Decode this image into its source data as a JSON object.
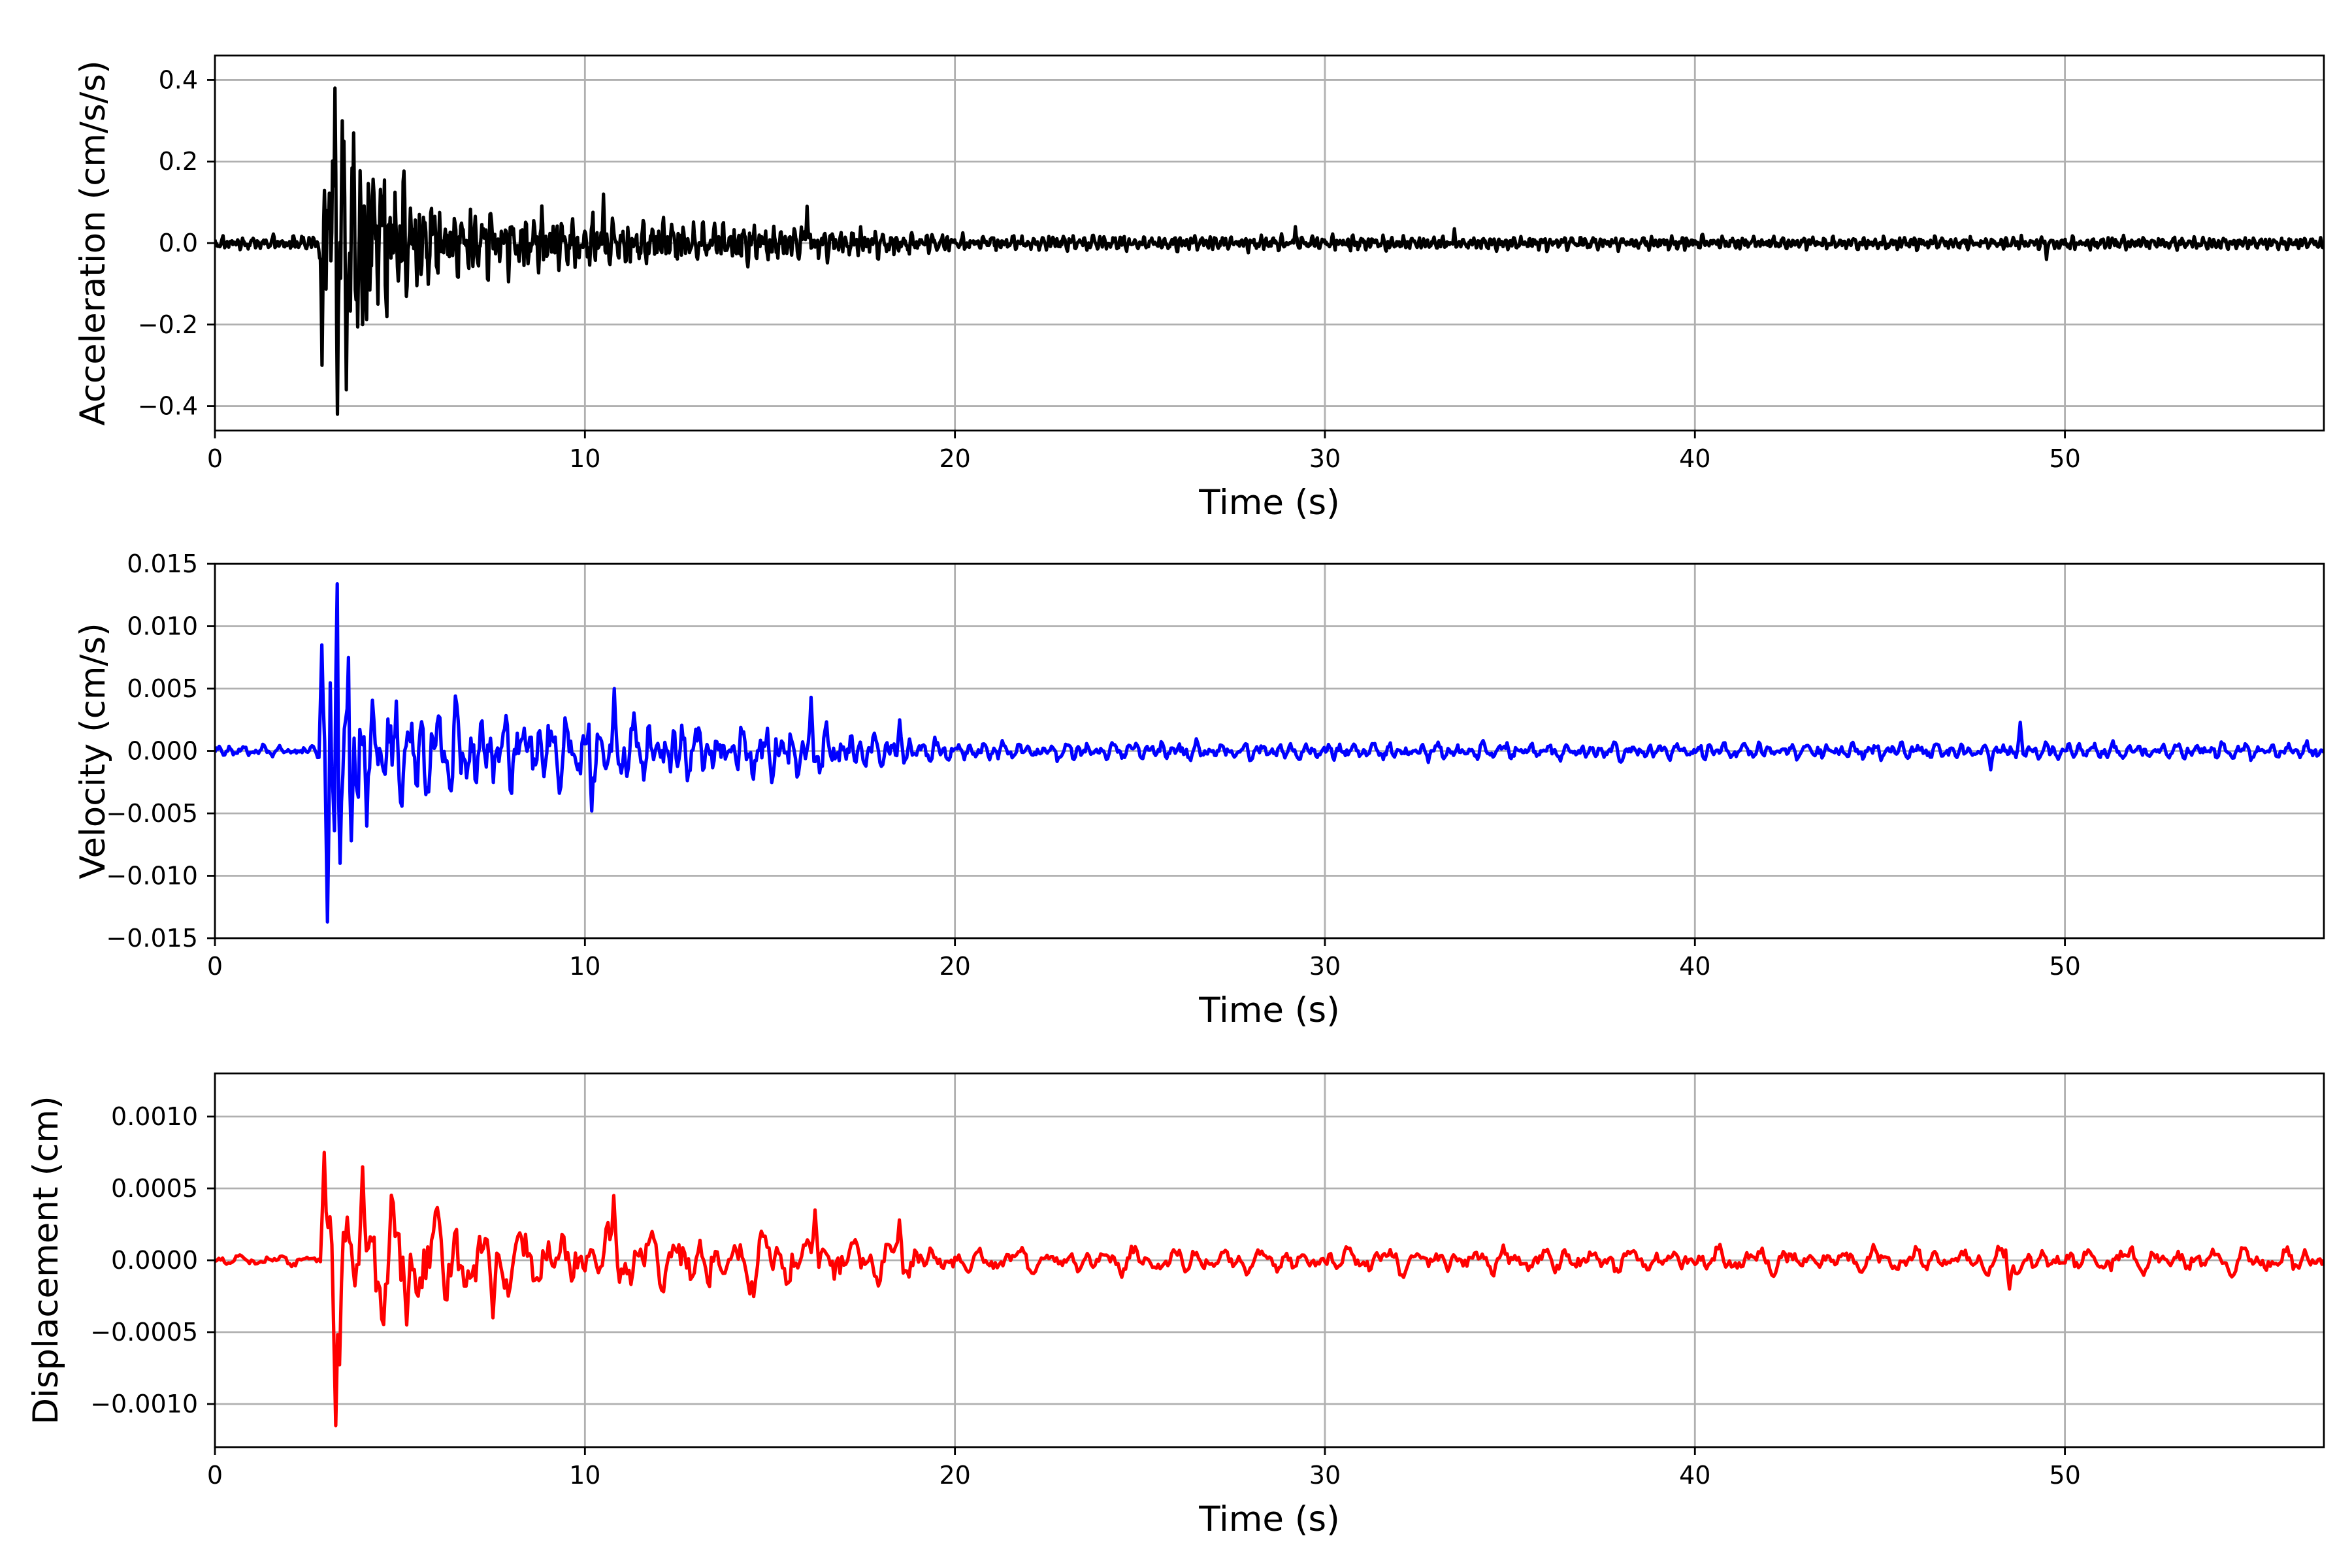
{
  "chart_data": [
    {
      "type": "line",
      "id": "acceleration",
      "xlabel": "Time (s)",
      "ylabel": "Acceleration (cm/s/s)",
      "xlim": [
        0,
        57
      ],
      "ylim": [
        -0.46,
        0.46
      ],
      "xticks": [
        0,
        10,
        20,
        30,
        40,
        50
      ],
      "xtick_labels": [
        "0",
        "10",
        "20",
        "30",
        "40",
        "50"
      ],
      "yticks": [
        -0.4,
        -0.2,
        0.0,
        0.2,
        0.4
      ],
      "ytick_labels": [
        "−0.4",
        "−0.2",
        "0.0",
        "0.2",
        "0.4"
      ],
      "grid": true,
      "color": "#000000",
      "series": [
        {
          "description": "Strong-motion acceleration record: quiet pre-event noise, sharp onset near 3 s, decaying coda out to 57 s",
          "noise_amplitude": 0.012,
          "envelope": [
            [
              0,
              0.02
            ],
            [
              2.8,
              0.025
            ],
            [
              3.0,
              0.25
            ],
            [
              3.3,
              0.38
            ],
            [
              4.0,
              0.3
            ],
            [
              6.0,
              0.12
            ],
            [
              10.0,
              0.08
            ],
            [
              16.0,
              0.06
            ],
            [
              20.0,
              0.025
            ],
            [
              57.0,
              0.02
            ]
          ],
          "points": [
            [
              2.9,
              -0.3
            ],
            [
              3.05,
              0.08
            ],
            [
              3.25,
              0.38
            ],
            [
              3.3,
              -0.42
            ],
            [
              3.45,
              0.3
            ],
            [
              3.55,
              -0.36
            ],
            [
              3.75,
              0.27
            ],
            [
              4.0,
              -0.2
            ],
            [
              10.5,
              0.12
            ],
            [
              16.0,
              0.09
            ],
            [
              29.2,
              0.04
            ],
            [
              33.5,
              0.035
            ],
            [
              49.5,
              -0.04
            ]
          ]
        }
      ]
    },
    {
      "type": "line",
      "id": "velocity",
      "xlabel": "Time (s)",
      "ylabel": "Velocity (cm/s)",
      "xlim": [
        0,
        57
      ],
      "ylim": [
        -0.015,
        0.015
      ],
      "xticks": [
        0,
        10,
        20,
        30,
        40,
        50
      ],
      "xtick_labels": [
        "0",
        "10",
        "20",
        "30",
        "40",
        "50"
      ],
      "yticks": [
        -0.015,
        -0.01,
        -0.005,
        0.0,
        0.005,
        0.01,
        0.015
      ],
      "ytick_labels": [
        "−0.015",
        "−0.010",
        "−0.005",
        "0.000",
        "0.005",
        "0.010",
        "0.015"
      ],
      "grid": true,
      "color": "#0000ff",
      "series": [
        {
          "description": "Velocity time history integrated from acceleration",
          "envelope": [
            [
              0,
              0.0006
            ],
            [
              2.8,
              0.0006
            ],
            [
              3.0,
              0.009
            ],
            [
              3.3,
              0.013
            ],
            [
              4.5,
              0.006
            ],
            [
              8.0,
              0.004
            ],
            [
              12.0,
              0.0035
            ],
            [
              17.0,
              0.0025
            ],
            [
              20.0,
              0.001
            ],
            [
              57.0,
              0.0009
            ]
          ],
          "points": [
            [
              2.9,
              0.0085
            ],
            [
              3.05,
              -0.0137
            ],
            [
              3.3,
              0.0134
            ],
            [
              3.4,
              -0.009
            ],
            [
              3.6,
              0.0075
            ],
            [
              3.7,
              -0.0072
            ],
            [
              10.2,
              -0.0048
            ],
            [
              10.8,
              0.005
            ],
            [
              16.1,
              0.0043
            ],
            [
              18.5,
              0.0025
            ],
            [
              48.8,
              0.0023
            ],
            [
              48.0,
              -0.0015
            ]
          ]
        }
      ]
    },
    {
      "type": "line",
      "id": "displacement",
      "xlabel": "Time (s)",
      "ylabel": "Displacement (cm)",
      "xlim": [
        0,
        57
      ],
      "ylim": [
        -0.0013,
        0.0013
      ],
      "xticks": [
        0,
        10,
        20,
        30,
        40,
        50
      ],
      "xtick_labels": [
        "0",
        "10",
        "20",
        "30",
        "40",
        "50"
      ],
      "yticks": [
        -0.001,
        -0.0005,
        0.0,
        0.0005,
        0.001
      ],
      "ytick_labels": [
        "−0.0010",
        "−0.0005",
        "0.0000",
        "0.0005",
        "0.0010"
      ],
      "grid": true,
      "color": "#ff0000",
      "series": [
        {
          "description": "Displacement time history integrated from velocity",
          "envelope": [
            [
              0,
              5e-05
            ],
            [
              2.8,
              5e-05
            ],
            [
              3.0,
              0.0008
            ],
            [
              3.3,
              0.0012
            ],
            [
              4.2,
              0.0006
            ],
            [
              8.0,
              0.0003
            ],
            [
              16.0,
              0.00028
            ],
            [
              20.0,
              0.00012
            ],
            [
              57.0,
              0.00012
            ]
          ],
          "points": [
            [
              2.95,
              0.00075
            ],
            [
              3.25,
              -0.00115
            ],
            [
              3.6,
              0.0003
            ],
            [
              4.0,
              0.00065
            ],
            [
              5.2,
              -0.00045
            ],
            [
              7.5,
              -0.0004
            ],
            [
              10.8,
              0.00045
            ],
            [
              16.2,
              0.00035
            ],
            [
              18.5,
              0.00028
            ],
            [
              48.5,
              -0.0002
            ]
          ]
        }
      ]
    }
  ]
}
